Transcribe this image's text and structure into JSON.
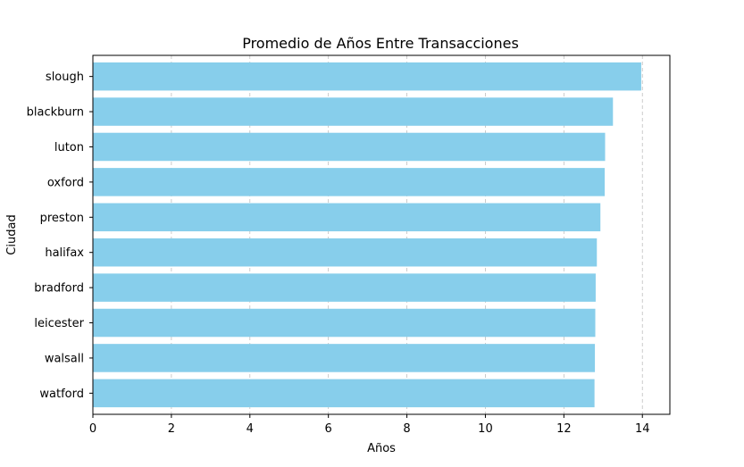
{
  "chart_data": {
    "type": "bar",
    "orientation": "horizontal",
    "title": "Promedio de Años Entre Transacciones",
    "xlabel": "Años",
    "ylabel": "Ciudad",
    "categories": [
      "slough",
      "blackburn",
      "luton",
      "oxford",
      "preston",
      "halifax",
      "bradford",
      "leicester",
      "walsall",
      "watford"
    ],
    "values": [
      13.97,
      13.25,
      13.05,
      13.04,
      12.93,
      12.84,
      12.81,
      12.8,
      12.79,
      12.78
    ],
    "xlim": [
      0,
      14.7
    ],
    "xticks": [
      "0",
      "2",
      "4",
      "6",
      "8",
      "10",
      "12",
      "14"
    ],
    "grid": "x-dashed",
    "bar_color": "#87ceeb",
    "grid_color": "#bfbfbf"
  }
}
